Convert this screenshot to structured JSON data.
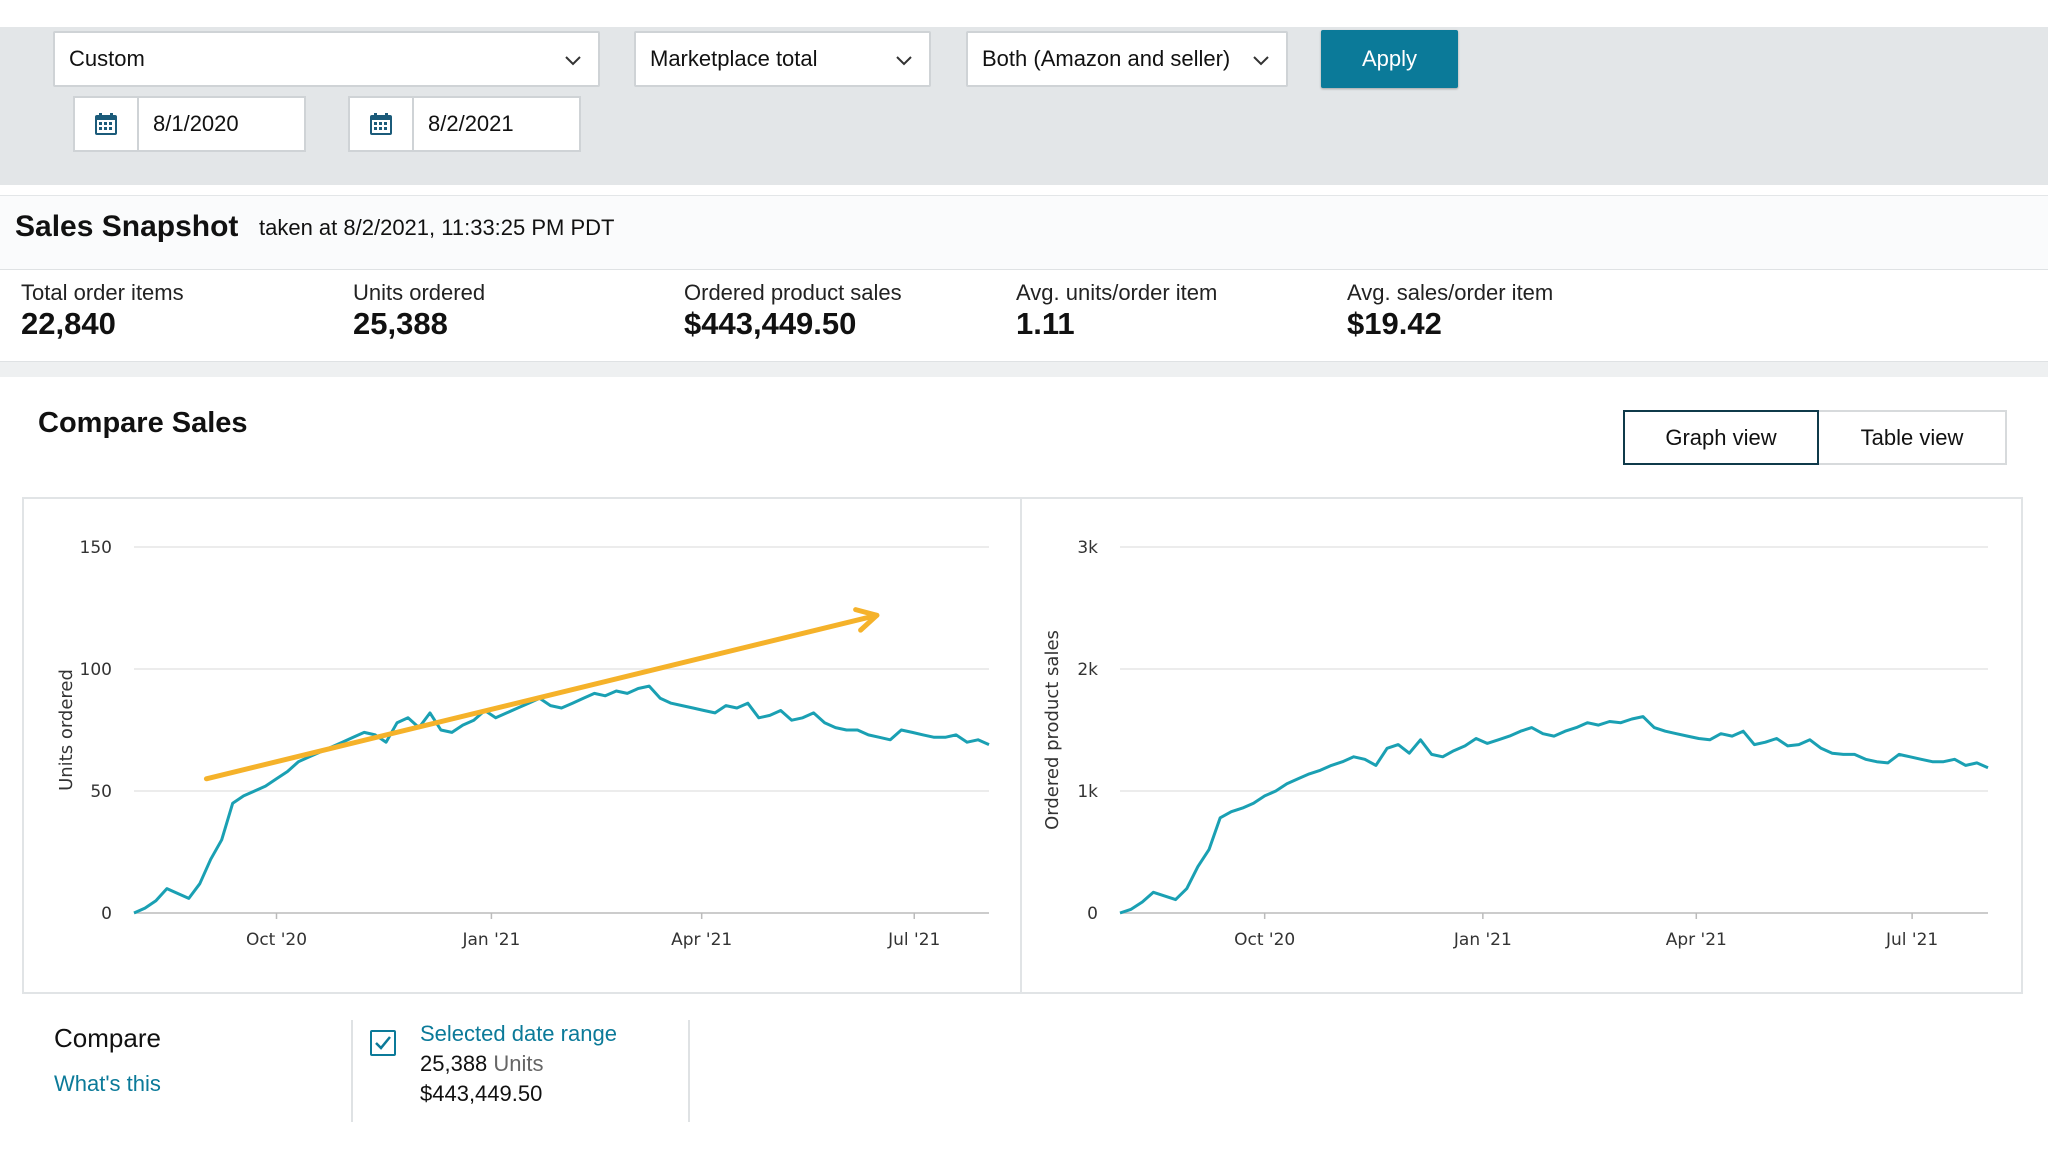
{
  "filters": {
    "range_select": "Custom",
    "marketplace_select": "Marketplace total",
    "fulfillment_select": "Both (Amazon and seller)",
    "apply_label": "Apply",
    "start_date": "8/1/2020",
    "end_date": "8/2/2021"
  },
  "snapshot": {
    "title": "Sales Snapshot",
    "taken": "taken at 8/2/2021, 11:33:25 PM PDT",
    "metrics": [
      {
        "label": "Total order items",
        "value": "22,840"
      },
      {
        "label": "Units ordered",
        "value": "25,388"
      },
      {
        "label": "Ordered product sales",
        "value": "$443,449.50"
      },
      {
        "label": "Avg. units/order item",
        "value": "1.11"
      },
      {
        "label": "Avg. sales/order item",
        "value": "$19.42"
      }
    ]
  },
  "compare_sales": {
    "title": "Compare Sales",
    "graph_view": "Graph view",
    "table_view": "Table view"
  },
  "compare": {
    "label": "Compare",
    "whats_this": "What's this",
    "selected_range": "Selected date range",
    "units_value": "25,388",
    "units_word": "Units",
    "sales_value": "$443,449.50"
  },
  "colors": {
    "series": "#1aa0b3",
    "trend_arrow": "#f5b22a",
    "apply_button": "#0b7a99"
  },
  "chart_data": [
    {
      "type": "line",
      "ylabel": "Units ordered",
      "ylim": [
        0,
        150
      ],
      "yticks": [
        "0",
        "50",
        "100",
        "150"
      ],
      "xticks": [
        "Oct '20",
        "Jan '21",
        "Apr '21",
        "Jul '21"
      ],
      "x_range": [
        "2020-08-01",
        "2021-08-02"
      ],
      "series": [
        {
          "sampling": "approx. every 4 days from 2020-08-01",
          "values": [
            0,
            2,
            5,
            10,
            8,
            6,
            12,
            22,
            30,
            45,
            48,
            50,
            52,
            55,
            58,
            62,
            64,
            66,
            68,
            70,
            72,
            74,
            73,
            70,
            78,
            80,
            76,
            82,
            75,
            74,
            77,
            79,
            83,
            80,
            82,
            84,
            86,
            88,
            85,
            84,
            86,
            88,
            90,
            89,
            91,
            90,
            92,
            93,
            88,
            86,
            85,
            84,
            83,
            82,
            85,
            84,
            86,
            80,
            81,
            83,
            79,
            80,
            82,
            78,
            76,
            75,
            75,
            73,
            72,
            71,
            75,
            74,
            73,
            72,
            72,
            73,
            70,
            71,
            69
          ]
        }
      ],
      "annotation": "trend arrow (upward)"
    },
    {
      "type": "line",
      "ylabel": "Ordered product sales",
      "ylim": [
        0,
        3000
      ],
      "yticks": [
        "0",
        "1k",
        "2k",
        "3k"
      ],
      "xticks": [
        "Oct '20",
        "Jan '21",
        "Apr '21",
        "Jul '21"
      ],
      "x_range": [
        "2020-08-01",
        "2021-08-02"
      ],
      "series": [
        {
          "sampling": "approx. every 4 days from 2020-08-01",
          "values": [
            0,
            30,
            90,
            170,
            140,
            110,
            200,
            380,
            520,
            780,
            830,
            860,
            900,
            960,
            1000,
            1060,
            1100,
            1140,
            1170,
            1210,
            1240,
            1280,
            1260,
            1210,
            1350,
            1380,
            1310,
            1420,
            1300,
            1280,
            1330,
            1370,
            1430,
            1390,
            1420,
            1450,
            1490,
            1520,
            1470,
            1450,
            1490,
            1520,
            1560,
            1540,
            1570,
            1560,
            1590,
            1610,
            1520,
            1490,
            1470,
            1450,
            1430,
            1420,
            1470,
            1450,
            1490,
            1380,
            1400,
            1430,
            1370,
            1380,
            1420,
            1350,
            1310,
            1300,
            1300,
            1260,
            1240,
            1230,
            1300,
            1280,
            1260,
            1240,
            1240,
            1260,
            1210,
            1230,
            1190
          ]
        }
      ]
    }
  ]
}
